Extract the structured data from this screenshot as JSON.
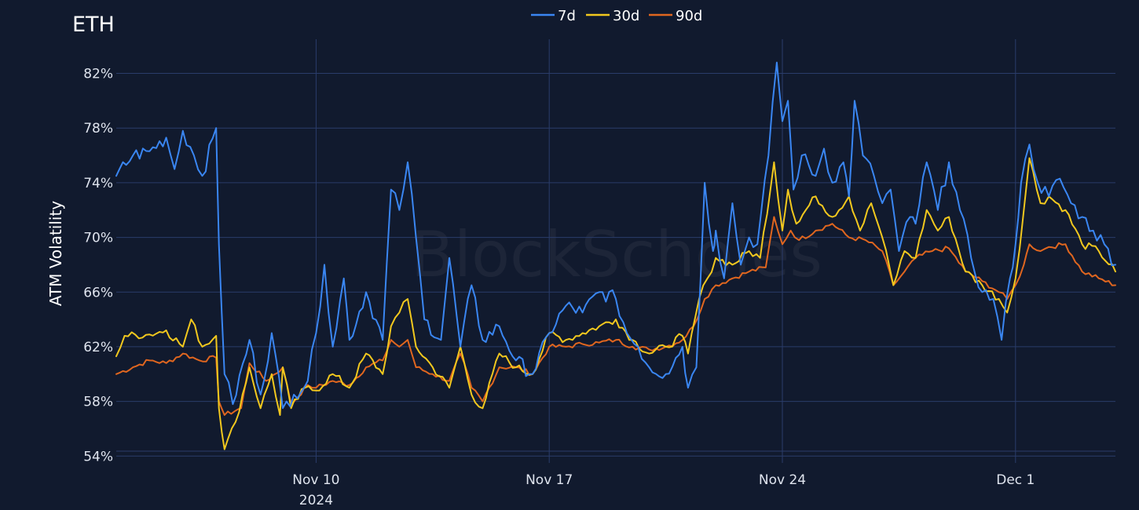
{
  "watermark": "BlockScholes",
  "chart_data": {
    "type": "line",
    "title": "ETH",
    "xlabel": "",
    "ylabel": "ATM Volatility",
    "x_range": [
      "2024-11-04",
      "2024-12-04"
    ],
    "ylim": [
      53.5,
      84.5
    ],
    "y_ticks": [
      54,
      58,
      62,
      66,
      70,
      74,
      78,
      82
    ],
    "y_tick_format": "%",
    "x_ticks": [
      {
        "date": "2024-11-10",
        "label": "Nov 10",
        "sublabel": "2024"
      },
      {
        "date": "2024-11-17",
        "label": "Nov 17",
        "sublabel": ""
      },
      {
        "date": "2024-11-24",
        "label": "Nov 24",
        "sublabel": ""
      },
      {
        "date": "2024-12-01",
        "label": "Dec 1",
        "sublabel": ""
      }
    ],
    "grid": true,
    "legend_position": "top-center",
    "series": [
      {
        "name": "7d",
        "color": "#3a86f2",
        "points": [
          [
            "2024-11-04",
            74.5
          ],
          [
            "2024-11-04T12:00",
            76.0
          ],
          [
            "2024-11-05",
            76.3
          ],
          [
            "2024-11-05T12:00",
            77.3
          ],
          [
            "2024-11-05T18:00",
            75.0
          ],
          [
            "2024-11-06",
            77.8
          ],
          [
            "2024-11-06T08:00",
            76.0
          ],
          [
            "2024-11-06T14:00",
            74.5
          ],
          [
            "2024-11-07",
            78.0
          ],
          [
            "2024-11-07T02:00",
            69.5
          ],
          [
            "2024-11-07T06:00",
            60.0
          ],
          [
            "2024-11-07T12:00",
            57.8
          ],
          [
            "2024-11-08",
            62.5
          ],
          [
            "2024-11-08T08:00",
            58.5
          ],
          [
            "2024-11-08T16:00",
            63.0
          ],
          [
            "2024-11-09",
            57.5
          ],
          [
            "2024-11-09T08:00",
            58.5
          ],
          [
            "2024-11-09T18:00",
            59.5
          ],
          [
            "2024-11-10",
            63.0
          ],
          [
            "2024-11-10T06:00",
            68.0
          ],
          [
            "2024-11-10T12:00",
            62.0
          ],
          [
            "2024-11-10T20:00",
            67.0
          ],
          [
            "2024-11-11",
            62.5
          ],
          [
            "2024-11-11T12:00",
            66.0
          ],
          [
            "2024-11-12",
            62.5
          ],
          [
            "2024-11-12T06:00",
            73.5
          ],
          [
            "2024-11-12T12:00",
            72.0
          ],
          [
            "2024-11-12T18:00",
            75.5
          ],
          [
            "2024-11-13",
            70.0
          ],
          [
            "2024-11-13T06:00",
            64.0
          ],
          [
            "2024-11-13T18:00",
            62.5
          ],
          [
            "2024-11-14",
            68.5
          ],
          [
            "2024-11-14T08:00",
            62.0
          ],
          [
            "2024-11-14T16:00",
            66.5
          ],
          [
            "2024-11-15",
            62.5
          ],
          [
            "2024-11-15T12:00",
            63.5
          ],
          [
            "2024-11-16",
            61.0
          ],
          [
            "2024-11-16T12:00",
            60.0
          ],
          [
            "2024-11-17",
            63.0
          ],
          [
            "2024-11-17T12:00",
            65.0
          ],
          [
            "2024-11-18",
            64.5
          ],
          [
            "2024-11-18T12:00",
            66.0
          ],
          [
            "2024-11-19",
            65.5
          ],
          [
            "2024-11-19T08:00",
            63.0
          ],
          [
            "2024-11-19T16:00",
            62.0
          ],
          [
            "2024-11-20",
            60.5
          ],
          [
            "2024-11-20T12:00",
            60.0
          ],
          [
            "2024-11-21",
            62.0
          ],
          [
            "2024-11-21T04:00",
            59.0
          ],
          [
            "2024-11-21T10:00",
            60.5
          ],
          [
            "2024-11-21T16:00",
            74.0
          ],
          [
            "2024-11-21T22:00",
            69.0
          ],
          [
            "2024-11-22",
            70.5
          ],
          [
            "2024-11-22T06:00",
            67.0
          ],
          [
            "2024-11-22T12:00",
            72.5
          ],
          [
            "2024-11-22T18:00",
            68.0
          ],
          [
            "2024-11-23",
            70.0
          ],
          [
            "2024-11-23T06:00",
            69.5
          ],
          [
            "2024-11-23T14:00",
            76.0
          ],
          [
            "2024-11-23T20:00",
            82.8
          ],
          [
            "2024-11-24",
            78.5
          ],
          [
            "2024-11-24T04:00",
            80.0
          ],
          [
            "2024-11-24T08:00",
            73.5
          ],
          [
            "2024-11-24T14:00",
            76.0
          ],
          [
            "2024-11-25",
            74.5
          ],
          [
            "2024-11-25T06:00",
            76.5
          ],
          [
            "2024-11-25T12:00",
            74.0
          ],
          [
            "2024-11-25T20:00",
            75.5
          ],
          [
            "2024-11-26",
            73.0
          ],
          [
            "2024-11-26T04:00",
            80.0
          ],
          [
            "2024-11-26T10:00",
            76.0
          ],
          [
            "2024-11-26T18:00",
            74.5
          ],
          [
            "2024-11-27",
            72.5
          ],
          [
            "2024-11-27T06:00",
            73.5
          ],
          [
            "2024-11-27T12:00",
            69.0
          ],
          [
            "2024-11-27T20:00",
            71.5
          ],
          [
            "2024-11-28",
            71.0
          ],
          [
            "2024-11-28T08:00",
            75.5
          ],
          [
            "2024-11-28T16:00",
            72.0
          ],
          [
            "2024-11-29",
            75.5
          ],
          [
            "2024-11-29T08:00",
            72.0
          ],
          [
            "2024-11-29T16:00",
            68.5
          ],
          [
            "2024-11-30",
            66.0
          ],
          [
            "2024-11-30T08:00",
            65.5
          ],
          [
            "2024-11-30T14:00",
            62.5
          ],
          [
            "2024-11-30T20:00",
            67.0
          ],
          [
            "2024-12-01",
            69.5
          ],
          [
            "2024-12-01T04:00",
            74.0
          ],
          [
            "2024-12-01T10:00",
            76.8
          ],
          [
            "2024-12-01T16:00",
            74.0
          ],
          [
            "2024-12-02",
            73.0
          ],
          [
            "2024-12-02T08:00",
            74.3
          ],
          [
            "2024-12-02T16:00",
            72.5
          ],
          [
            "2024-12-03",
            71.5
          ],
          [
            "2024-12-03T08:00",
            70.5
          ],
          [
            "2024-12-03T16:00",
            69.5
          ],
          [
            "2024-12-04",
            68.0
          ]
        ]
      },
      {
        "name": "30d",
        "color": "#f2c81e",
        "points": [
          [
            "2024-11-04",
            61.3
          ],
          [
            "2024-11-04T06:00",
            62.8
          ],
          [
            "2024-11-05",
            62.9
          ],
          [
            "2024-11-05T12:00",
            63.2
          ],
          [
            "2024-11-06",
            62.0
          ],
          [
            "2024-11-06T06:00",
            64.0
          ],
          [
            "2024-11-06T14:00",
            62.0
          ],
          [
            "2024-11-07",
            62.8
          ],
          [
            "2024-11-07T02:00",
            57.5
          ],
          [
            "2024-11-07T06:00",
            54.5
          ],
          [
            "2024-11-07T14:00",
            56.5
          ],
          [
            "2024-11-08",
            60.5
          ],
          [
            "2024-11-08T08:00",
            57.5
          ],
          [
            "2024-11-08T16:00",
            60.0
          ],
          [
            "2024-11-08T22:00",
            57.0
          ],
          [
            "2024-11-09",
            60.5
          ],
          [
            "2024-11-09T06:00",
            57.5
          ],
          [
            "2024-11-09T16:00",
            59.0
          ],
          [
            "2024-11-10",
            58.8
          ],
          [
            "2024-11-10T12:00",
            60.0
          ],
          [
            "2024-11-11",
            59.0
          ],
          [
            "2024-11-11T12:00",
            61.5
          ],
          [
            "2024-11-12",
            60.0
          ],
          [
            "2024-11-12T06:00",
            63.5
          ],
          [
            "2024-11-12T12:00",
            64.5
          ],
          [
            "2024-11-12T18:00",
            65.5
          ],
          [
            "2024-11-13",
            62.0
          ],
          [
            "2024-11-13T12:00",
            60.5
          ],
          [
            "2024-11-14",
            59.0
          ],
          [
            "2024-11-14T08:00",
            62.0
          ],
          [
            "2024-11-14T16:00",
            58.5
          ],
          [
            "2024-11-15",
            57.5
          ],
          [
            "2024-11-15T12:00",
            61.5
          ],
          [
            "2024-11-16",
            60.5
          ],
          [
            "2024-11-16T12:00",
            60.0
          ],
          [
            "2024-11-17",
            63.0
          ],
          [
            "2024-11-17T12:00",
            62.5
          ],
          [
            "2024-11-18",
            63.0
          ],
          [
            "2024-11-18T12:00",
            63.5
          ],
          [
            "2024-11-19",
            64.0
          ],
          [
            "2024-11-19T12:00",
            62.5
          ],
          [
            "2024-11-20",
            61.5
          ],
          [
            "2024-11-20T12:00",
            62.0
          ],
          [
            "2024-11-21",
            62.8
          ],
          [
            "2024-11-21T04:00",
            61.5
          ],
          [
            "2024-11-21T12:00",
            65.5
          ],
          [
            "2024-11-21T18:00",
            67.0
          ],
          [
            "2024-11-22",
            68.5
          ],
          [
            "2024-11-22T12:00",
            68.0
          ],
          [
            "2024-11-23",
            69.0
          ],
          [
            "2024-11-23T08:00",
            68.5
          ],
          [
            "2024-11-23T18:00",
            75.5
          ],
          [
            "2024-11-24",
            70.5
          ],
          [
            "2024-11-24T04:00",
            73.5
          ],
          [
            "2024-11-24T10:00",
            71.0
          ],
          [
            "2024-11-25",
            73.0
          ],
          [
            "2024-11-25T12:00",
            71.5
          ],
          [
            "2024-11-26",
            73.0
          ],
          [
            "2024-11-26T08:00",
            70.5
          ],
          [
            "2024-11-26T16:00",
            72.5
          ],
          [
            "2024-11-27",
            70.0
          ],
          [
            "2024-11-27T08:00",
            66.5
          ],
          [
            "2024-11-27T16:00",
            69.0
          ],
          [
            "2024-11-28",
            68.5
          ],
          [
            "2024-11-28T08:00",
            72.0
          ],
          [
            "2024-11-28T16:00",
            70.5
          ],
          [
            "2024-11-29",
            71.5
          ],
          [
            "2024-11-29T12:00",
            67.5
          ],
          [
            "2024-11-30",
            66.5
          ],
          [
            "2024-11-30T12:00",
            65.5
          ],
          [
            "2024-11-30T18:00",
            64.5
          ],
          [
            "2024-12-01",
            67.0
          ],
          [
            "2024-12-01T06:00",
            72.0
          ],
          [
            "2024-12-01T10:00",
            75.8
          ],
          [
            "2024-12-01T18:00",
            72.5
          ],
          [
            "2024-12-02",
            73.0
          ],
          [
            "2024-12-02T12:00",
            72.0
          ],
          [
            "2024-12-03",
            69.5
          ],
          [
            "2024-12-03T12:00",
            69.0
          ],
          [
            "2024-12-04",
            67.5
          ]
        ]
      },
      {
        "name": "90d",
        "color": "#e0661f",
        "points": [
          [
            "2024-11-04",
            60.0
          ],
          [
            "2024-11-04T12:00",
            60.5
          ],
          [
            "2024-11-05",
            61.0
          ],
          [
            "2024-11-05T12:00",
            60.8
          ],
          [
            "2024-11-06",
            61.5
          ],
          [
            "2024-11-06T12:00",
            61.0
          ],
          [
            "2024-11-07",
            61.2
          ],
          [
            "2024-11-07T02:00",
            58.0
          ],
          [
            "2024-11-07T06:00",
            57.0
          ],
          [
            "2024-11-07T18:00",
            57.5
          ],
          [
            "2024-11-08",
            60.8
          ],
          [
            "2024-11-08T12:00",
            59.5
          ],
          [
            "2024-11-09",
            60.5
          ],
          [
            "2024-11-09T06:00",
            57.8
          ],
          [
            "2024-11-09T18:00",
            59.2
          ],
          [
            "2024-11-10",
            59.0
          ],
          [
            "2024-11-10T12:00",
            59.5
          ],
          [
            "2024-11-11",
            59.2
          ],
          [
            "2024-11-11T12:00",
            60.5
          ],
          [
            "2024-11-12",
            61.0
          ],
          [
            "2024-11-12T06:00",
            62.5
          ],
          [
            "2024-11-12T12:00",
            62.0
          ],
          [
            "2024-11-12T18:00",
            62.5
          ],
          [
            "2024-11-13",
            60.5
          ],
          [
            "2024-11-13T12:00",
            60.0
          ],
          [
            "2024-11-14",
            59.5
          ],
          [
            "2024-11-14T08:00",
            61.5
          ],
          [
            "2024-11-14T16:00",
            59.0
          ],
          [
            "2024-11-15",
            58.0
          ],
          [
            "2024-11-15T12:00",
            60.5
          ],
          [
            "2024-11-16",
            60.5
          ],
          [
            "2024-11-16T12:00",
            60.0
          ],
          [
            "2024-11-17",
            62.0
          ],
          [
            "2024-11-17T12:00",
            62.0
          ],
          [
            "2024-11-18",
            62.2
          ],
          [
            "2024-11-18T12:00",
            62.3
          ],
          [
            "2024-11-19",
            62.5
          ],
          [
            "2024-11-19T12:00",
            62.0
          ],
          [
            "2024-11-20",
            61.8
          ],
          [
            "2024-11-20T12:00",
            62.0
          ],
          [
            "2024-11-21",
            62.5
          ],
          [
            "2024-11-21T08:00",
            63.5
          ],
          [
            "2024-11-21T16:00",
            65.5
          ],
          [
            "2024-11-22",
            66.5
          ],
          [
            "2024-11-22T12:00",
            67.0
          ],
          [
            "2024-11-23",
            67.5
          ],
          [
            "2024-11-23T12:00",
            67.8
          ],
          [
            "2024-11-23T18:00",
            71.5
          ],
          [
            "2024-11-24",
            69.5
          ],
          [
            "2024-11-24T06:00",
            70.5
          ],
          [
            "2024-11-24T12:00",
            69.8
          ],
          [
            "2024-11-25",
            70.5
          ],
          [
            "2024-11-25T12:00",
            71.0
          ],
          [
            "2024-11-26",
            70.0
          ],
          [
            "2024-11-26T12:00",
            69.8
          ],
          [
            "2024-11-27",
            69.0
          ],
          [
            "2024-11-27T08:00",
            66.5
          ],
          [
            "2024-11-27T16:00",
            67.5
          ],
          [
            "2024-11-28",
            68.5
          ],
          [
            "2024-11-28T12:00",
            69.0
          ],
          [
            "2024-11-29",
            69.2
          ],
          [
            "2024-11-29T12:00",
            67.5
          ],
          [
            "2024-11-30",
            66.8
          ],
          [
            "2024-11-30T12:00",
            66.0
          ],
          [
            "2024-11-30T18:00",
            65.5
          ],
          [
            "2024-12-01",
            66.5
          ],
          [
            "2024-12-01T06:00",
            68.0
          ],
          [
            "2024-12-01T10:00",
            69.5
          ],
          [
            "2024-12-01T18:00",
            69.0
          ],
          [
            "2024-12-02",
            69.3
          ],
          [
            "2024-12-02T12:00",
            69.5
          ],
          [
            "2024-12-03",
            67.5
          ],
          [
            "2024-12-03T12:00",
            67.0
          ],
          [
            "2024-12-04",
            66.5
          ]
        ]
      }
    ]
  }
}
